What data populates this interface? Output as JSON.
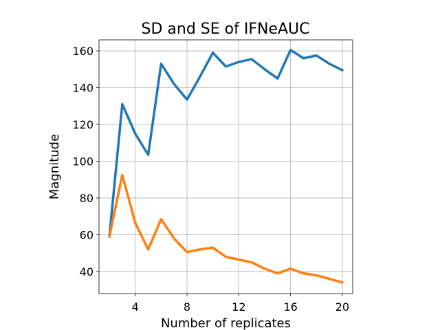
{
  "chart_data": {
    "type": "line",
    "title": "SD and SE of IFNeAUC",
    "xlabel": "Number of replicates",
    "ylabel": "Magnitude",
    "xlim": [
      1.2,
      20.8
    ],
    "ylim": [
      28,
      166
    ],
    "xticks": [
      4,
      8,
      12,
      16,
      20
    ],
    "yticks": [
      40,
      60,
      80,
      100,
      120,
      140,
      160
    ],
    "grid": true,
    "x": [
      2,
      3,
      4,
      5,
      6,
      7,
      8,
      9,
      10,
      11,
      12,
      13,
      14,
      15,
      16,
      17,
      18,
      19,
      20
    ],
    "series": [
      {
        "color": "#1f77b4",
        "values": [
          59,
          131,
          115,
          103.5,
          153,
          142,
          133.5,
          146,
          159,
          151.5,
          154,
          155.5,
          150,
          145,
          160.5,
          156,
          157.5,
          153,
          149.5
        ]
      },
      {
        "color": "#ff7f0e",
        "values": [
          59,
          92.5,
          66.5,
          52,
          68.5,
          58,
          50.5,
          52,
          53,
          48,
          46.5,
          45,
          41.5,
          39,
          41.5,
          39,
          38,
          36,
          34
        ]
      }
    ]
  }
}
